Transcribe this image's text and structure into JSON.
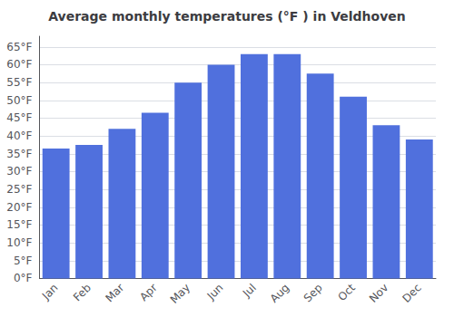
{
  "chart_data": {
    "type": "bar",
    "title": "Average monthly temperatures (°F ) in Veldhoven",
    "categories": [
      "Jan",
      "Feb",
      "Mar",
      "Apr",
      "May",
      "Jun",
      "Jul",
      "Aug",
      "Sep",
      "Oct",
      "Nov",
      "Dec"
    ],
    "values": [
      36.5,
      37.5,
      42.0,
      46.5,
      55.0,
      60.0,
      63.0,
      63.0,
      57.5,
      51.0,
      43.0,
      39.0
    ],
    "ylim": [
      0,
      68
    ],
    "yticks": [
      {
        "value": 0,
        "label": "0°F"
      },
      {
        "value": 5,
        "label": "5°F"
      },
      {
        "value": 10,
        "label": "10°F"
      },
      {
        "value": 15,
        "label": "15°F"
      },
      {
        "value": 20,
        "label": "20°F"
      },
      {
        "value": 25,
        "label": "25°F"
      },
      {
        "value": 30,
        "label": "30°F"
      },
      {
        "value": 35,
        "label": "35°F"
      },
      {
        "value": 40,
        "label": "40°F"
      },
      {
        "value": 45,
        "label": "45°F"
      },
      {
        "value": 50,
        "label": "50°F"
      },
      {
        "value": 55,
        "label": "55°F"
      },
      {
        "value": 60,
        "label": "60°F"
      },
      {
        "value": 65,
        "label": "65°F"
      }
    ],
    "grid": true
  }
}
